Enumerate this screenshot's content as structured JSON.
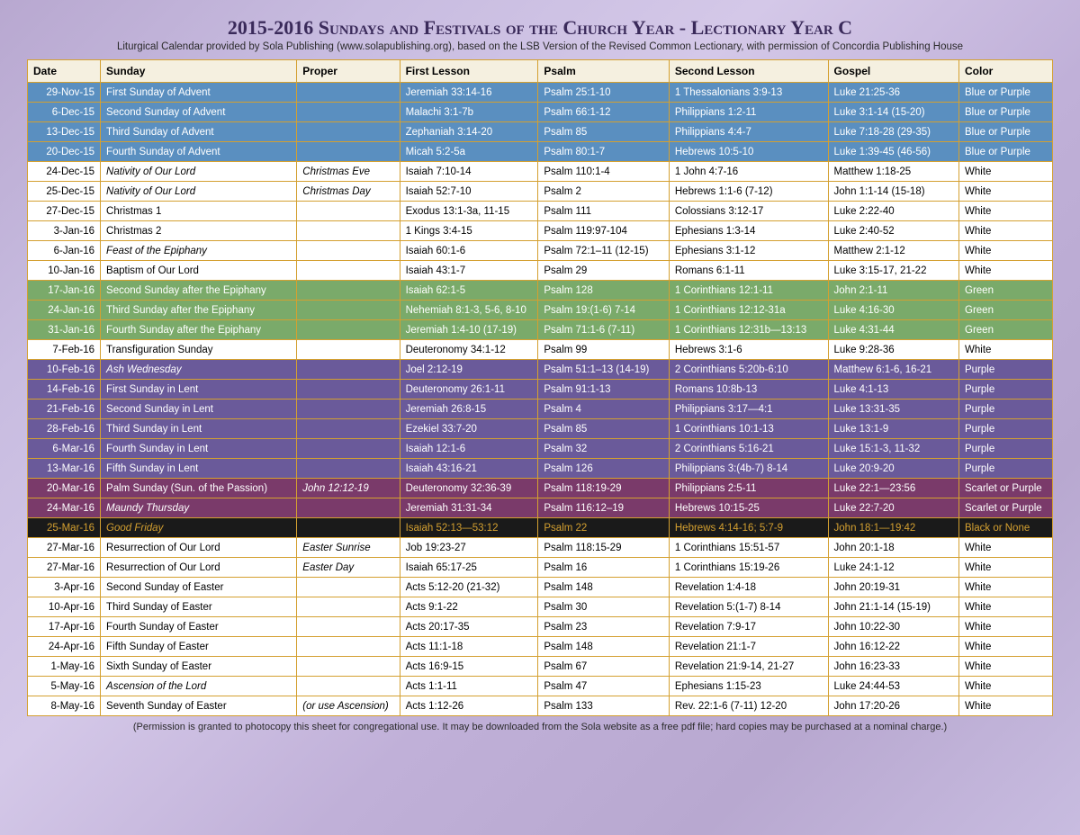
{
  "title": "2015-2016 Sundays and Festivals of the Church Year - Lectionary Year C",
  "subtitle": "Liturgical Calendar provided by Sola Publishing (www.solapublishing.org), based on the LSB Version of the Revised Common Lectionary, with permission of Concordia Publishing House",
  "footer": "(Permission is granted to photocopy this sheet for congregational use. It may be downloaded from the Sola website as a free pdf file; hard copies may be purchased at a nominal charge.)",
  "columns": [
    "Date",
    "Sunday",
    "Proper",
    "First Lesson",
    "Psalm",
    "Second Lesson",
    "Gospel",
    "Color"
  ],
  "row_colors": {
    "blue": "#5a8fc0",
    "white": "#ffffff",
    "green": "#7aaa6a",
    "purple": "#6a5a9a",
    "darkpurple": "#7a3a6a",
    "black": "#1a1a1a"
  },
  "rows": [
    {
      "cls": "blue",
      "date": "29-Nov-15",
      "sunday": "First Sunday of Advent",
      "proper": "",
      "first": "Jeremiah 33:14-16",
      "psalm": "Psalm 25:1-10",
      "second": "1 Thessalonians 3:9-13",
      "gospel": "Luke 21:25-36",
      "color": "Blue or Purple"
    },
    {
      "cls": "blue",
      "date": "6-Dec-15",
      "sunday": "Second Sunday of Advent",
      "proper": "",
      "first": "Malachi 3:1-7b",
      "psalm": "Psalm 66:1-12",
      "second": "Philippians 1:2-11",
      "gospel": "Luke 3:1-14 (15-20)",
      "color": "Blue or Purple"
    },
    {
      "cls": "blue",
      "date": "13-Dec-15",
      "sunday": "Third Sunday of Advent",
      "proper": "",
      "first": "Zephaniah 3:14-20",
      "psalm": "Psalm 85",
      "second": "Philippians 4:4-7",
      "gospel": "Luke 7:18-28 (29-35)",
      "color": "Blue or Purple"
    },
    {
      "cls": "blue",
      "date": "20-Dec-15",
      "sunday": "Fourth Sunday of Advent",
      "proper": "",
      "first": "Micah 5:2-5a",
      "psalm": "Psalm 80:1-7",
      "second": "Hebrews 10:5-10",
      "gospel": "Luke 1:39-45 (46-56)",
      "color": "Blue or Purple"
    },
    {
      "cls": "white",
      "date": "24-Dec-15",
      "sunday": "Nativity of Our Lord",
      "sundayItalic": true,
      "proper": "Christmas Eve",
      "first": "Isaiah 7:10-14",
      "psalm": "Psalm 110:1-4",
      "second": "1 John 4:7-16",
      "gospel": "Matthew 1:18-25",
      "color": "White"
    },
    {
      "cls": "white",
      "date": "25-Dec-15",
      "sunday": "Nativity of Our Lord",
      "sundayItalic": true,
      "proper": "Christmas Day",
      "first": "Isaiah 52:7-10",
      "psalm": "Psalm 2",
      "second": "Hebrews 1:1-6 (7-12)",
      "gospel": "John 1:1-14 (15-18)",
      "color": "White"
    },
    {
      "cls": "white",
      "date": "27-Dec-15",
      "sunday": "Christmas 1",
      "proper": "",
      "first": "Exodus 13:1-3a, 11-15",
      "psalm": "Psalm 111",
      "second": "Colossians 3:12-17",
      "gospel": "Luke 2:22-40",
      "color": "White"
    },
    {
      "cls": "white",
      "date": "3-Jan-16",
      "sunday": "Christmas 2",
      "proper": "",
      "first": "1 Kings 3:4-15",
      "psalm": "Psalm 119:97-104",
      "second": "Ephesians 1:3-14",
      "gospel": "Luke 2:40-52",
      "color": "White"
    },
    {
      "cls": "white",
      "date": "6-Jan-16",
      "sunday": "Feast of the Epiphany",
      "sundayItalic": true,
      "proper": "",
      "first": "Isaiah 60:1-6",
      "psalm": "Psalm 72:1–11 (12-15)",
      "second": "Ephesians 3:1-12",
      "gospel": "Matthew 2:1-12",
      "color": "White"
    },
    {
      "cls": "white",
      "date": "10-Jan-16",
      "sunday": "Baptism of Our Lord",
      "proper": "",
      "first": "Isaiah 43:1-7",
      "psalm": "Psalm 29",
      "second": "Romans 6:1-11",
      "gospel": "Luke 3:15-17, 21-22",
      "color": "White"
    },
    {
      "cls": "green",
      "date": "17-Jan-16",
      "sunday": "Second Sunday after the Epiphany",
      "proper": "",
      "first": "Isaiah 62:1-5",
      "psalm": "Psalm 128",
      "second": "1 Corinthians 12:1-11",
      "gospel": "John 2:1-11",
      "color": "Green"
    },
    {
      "cls": "green",
      "date": "24-Jan-16",
      "sunday": "Third Sunday after the Epiphany",
      "proper": "",
      "first": "Nehemiah 8:1-3, 5-6, 8-10",
      "psalm": "Psalm 19:(1-6) 7-14",
      "second": "1 Corinthians 12:12-31a",
      "gospel": "Luke 4:16-30",
      "color": "Green"
    },
    {
      "cls": "green",
      "date": "31-Jan-16",
      "sunday": "Fourth Sunday after the Epiphany",
      "proper": "",
      "first": "Jeremiah 1:4-10 (17-19)",
      "psalm": "Psalm 71:1-6 (7-11)",
      "second": "1 Corinthians 12:31b—13:13",
      "gospel": "Luke 4:31-44",
      "color": "Green"
    },
    {
      "cls": "white",
      "date": "7-Feb-16",
      "sunday": "Transfiguration Sunday",
      "proper": "",
      "first": "Deuteronomy 34:1-12",
      "psalm": "Psalm 99",
      "second": "Hebrews 3:1-6",
      "gospel": "Luke 9:28-36",
      "color": "White"
    },
    {
      "cls": "purple",
      "date": "10-Feb-16",
      "sunday": "Ash Wednesday",
      "sundayItalic": true,
      "proper": "",
      "first": "Joel 2:12-19",
      "psalm": "Psalm 51:1–13 (14-19)",
      "second": "2 Corinthians 5:20b-6:10",
      "gospel": "Matthew 6:1-6, 16-21",
      "color": "Purple"
    },
    {
      "cls": "purple",
      "date": "14-Feb-16",
      "sunday": "First Sunday in Lent",
      "proper": "",
      "first": "Deuteronomy 26:1-11",
      "psalm": "Psalm 91:1-13",
      "second": "Romans 10:8b-13",
      "gospel": "Luke 4:1-13",
      "color": "Purple"
    },
    {
      "cls": "purple",
      "date": "21-Feb-16",
      "sunday": "Second Sunday in Lent",
      "proper": "",
      "first": "Jeremiah 26:8-15",
      "psalm": "Psalm 4",
      "second": "Philippians 3:17—4:1",
      "gospel": "Luke 13:31-35",
      "color": "Purple"
    },
    {
      "cls": "purple",
      "date": "28-Feb-16",
      "sunday": "Third Sunday in Lent",
      "proper": "",
      "first": "Ezekiel 33:7-20",
      "psalm": "Psalm 85",
      "second": "1 Corinthians 10:1-13",
      "gospel": "Luke 13:1-9",
      "color": "Purple"
    },
    {
      "cls": "purple",
      "date": "6-Mar-16",
      "sunday": "Fourth Sunday in Lent",
      "proper": "",
      "first": "Isaiah 12:1-6",
      "psalm": "Psalm 32",
      "second": "2 Corinthians 5:16-21",
      "gospel": "Luke 15:1-3, 11-32",
      "color": "Purple"
    },
    {
      "cls": "purple",
      "date": "13-Mar-16",
      "sunday": "Fifth Sunday in Lent",
      "proper": "",
      "first": "Isaiah 43:16-21",
      "psalm": "Psalm 126",
      "second": "Philippians 3:(4b-7) 8-14",
      "gospel": "Luke 20:9-20",
      "color": "Purple"
    },
    {
      "cls": "darkpurple",
      "date": "20-Mar-16",
      "sunday": "Palm Sunday (Sun. of the Passion)",
      "proper": "John 12:12-19",
      "first": "Deuteronomy 32:36-39",
      "psalm": "Psalm 118:19-29",
      "second": "Philippians 2:5-11",
      "gospel": "Luke 22:1—23:56",
      "color": "Scarlet or Purple"
    },
    {
      "cls": "darkpurple",
      "date": "24-Mar-16",
      "sunday": "Maundy Thursday",
      "sundayItalic": true,
      "proper": "",
      "first": "Jeremiah 31:31-34",
      "psalm": "Psalm 116:12–19",
      "second": "Hebrews 10:15-25",
      "gospel": "Luke 22:7-20",
      "color": "Scarlet or Purple"
    },
    {
      "cls": "black",
      "date": "25-Mar-16",
      "sunday": "Good Friday",
      "sundayItalic": true,
      "proper": "",
      "first": "Isaiah 52:13—53:12",
      "psalm": "Psalm 22",
      "second": "Hebrews 4:14-16; 5:7-9",
      "gospel": "John 18:1—19:42",
      "color": "Black or None"
    },
    {
      "cls": "white",
      "date": "27-Mar-16",
      "sunday": "Resurrection of Our Lord",
      "proper": "Easter Sunrise",
      "first": "Job 19:23-27",
      "psalm": "Psalm 118:15-29",
      "second": "1 Corinthians 15:51-57",
      "gospel": "John 20:1-18",
      "color": "White"
    },
    {
      "cls": "white",
      "date": "27-Mar-16",
      "sunday": "Resurrection of Our Lord",
      "proper": "Easter Day",
      "first": "Isaiah 65:17-25",
      "psalm": "Psalm 16",
      "second": "1 Corinthians 15:19-26",
      "gospel": "Luke 24:1-12",
      "color": "White"
    },
    {
      "cls": "white",
      "date": "3-Apr-16",
      "sunday": "Second Sunday of Easter",
      "proper": "",
      "first": "Acts 5:12-20 (21-32)",
      "psalm": "Psalm 148",
      "second": "Revelation 1:4-18",
      "gospel": "John 20:19-31",
      "color": "White"
    },
    {
      "cls": "white",
      "date": "10-Apr-16",
      "sunday": "Third Sunday of Easter",
      "proper": "",
      "first": "Acts 9:1-22",
      "psalm": "Psalm 30",
      "second": "Revelation 5:(1-7) 8-14",
      "gospel": "John 21:1-14 (15-19)",
      "color": "White"
    },
    {
      "cls": "white",
      "date": "17-Apr-16",
      "sunday": "Fourth Sunday of Easter",
      "proper": "",
      "first": "Acts 20:17-35",
      "psalm": "Psalm 23",
      "second": "Revelation 7:9-17",
      "gospel": "John 10:22-30",
      "color": "White"
    },
    {
      "cls": "white",
      "date": "24-Apr-16",
      "sunday": "Fifth Sunday of Easter",
      "proper": "",
      "first": "Acts 11:1-18",
      "psalm": "Psalm 148",
      "second": "Revelation 21:1-7",
      "gospel": "John 16:12-22",
      "color": "White"
    },
    {
      "cls": "white",
      "date": "1-May-16",
      "sunday": "Sixth Sunday of Easter",
      "proper": "",
      "first": "Acts 16:9-15",
      "psalm": "Psalm 67",
      "second": "Revelation 21:9-14, 21-27",
      "gospel": "John 16:23-33",
      "color": "White"
    },
    {
      "cls": "white",
      "date": "5-May-16",
      "sunday": "Ascension of the Lord",
      "sundayItalic": true,
      "proper": "",
      "first": "Acts 1:1-11",
      "psalm": "Psalm 47",
      "second": "Ephesians 1:15-23",
      "gospel": "Luke 24:44-53",
      "color": "White"
    },
    {
      "cls": "white",
      "date": "8-May-16",
      "sunday": "Seventh Sunday of Easter",
      "proper": "(or use Ascension)",
      "first": "Acts 1:12-26",
      "psalm": "Psalm 133",
      "second": "Rev. 22:1-6 (7-11) 12-20",
      "gospel": "John 17:20-26",
      "color": "White"
    }
  ]
}
